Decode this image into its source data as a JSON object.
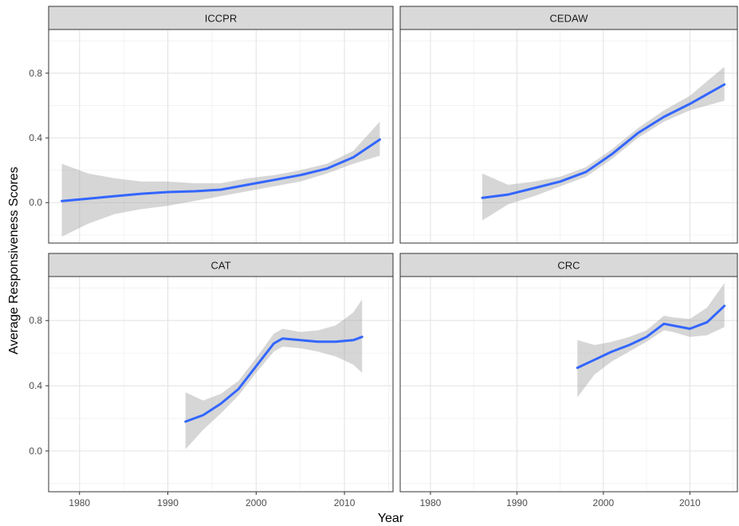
{
  "chart_data": {
    "type": "line",
    "xlabel": "Year",
    "ylabel": "Average Responsiveness Scores",
    "xlim": [
      1976.5,
      2015.5
    ],
    "ylim": [
      -0.25,
      1.07
    ],
    "x_ticks": [
      1980,
      1990,
      2000,
      2010
    ],
    "y_ticks": [
      0.0,
      0.4,
      0.8
    ],
    "grid": true,
    "colors": {
      "line": "#3366FF",
      "ribbon": "#999999",
      "strip": "#D9D9D9",
      "border": "#333333"
    },
    "panels": [
      {
        "name": "ICCPR",
        "x": [
          1978,
          1981,
          1984,
          1987,
          1990,
          1993,
          1996,
          1999,
          2002,
          2005,
          2008,
          2011,
          2014
        ],
        "y": [
          0.01,
          0.025,
          0.04,
          0.055,
          0.065,
          0.07,
          0.08,
          0.11,
          0.14,
          0.17,
          0.21,
          0.28,
          0.39
        ],
        "lower": [
          -0.21,
          -0.13,
          -0.07,
          -0.04,
          -0.02,
          0.01,
          0.04,
          0.07,
          0.1,
          0.13,
          0.18,
          0.24,
          0.29
        ],
        "upper": [
          0.24,
          0.18,
          0.15,
          0.13,
          0.13,
          0.12,
          0.12,
          0.15,
          0.17,
          0.2,
          0.24,
          0.32,
          0.5
        ]
      },
      {
        "name": "CEDAW",
        "x": [
          1986,
          1989,
          1992,
          1995,
          1998,
          2001,
          2004,
          2007,
          2010,
          2014
        ],
        "y": [
          0.03,
          0.05,
          0.09,
          0.13,
          0.19,
          0.3,
          0.43,
          0.53,
          0.61,
          0.73
        ],
        "lower": [
          -0.11,
          -0.01,
          0.04,
          0.1,
          0.16,
          0.27,
          0.4,
          0.5,
          0.57,
          0.63
        ],
        "upper": [
          0.18,
          0.11,
          0.13,
          0.16,
          0.22,
          0.33,
          0.46,
          0.57,
          0.66,
          0.84
        ]
      },
      {
        "name": "CAT",
        "x": [
          1992,
          1994,
          1996,
          1998,
          2000,
          2002,
          2003,
          2005,
          2007,
          2009,
          2011,
          2012
        ],
        "y": [
          0.18,
          0.22,
          0.29,
          0.38,
          0.52,
          0.66,
          0.69,
          0.68,
          0.67,
          0.67,
          0.68,
          0.7
        ],
        "lower": [
          0.01,
          0.13,
          0.23,
          0.34,
          0.48,
          0.61,
          0.64,
          0.63,
          0.61,
          0.58,
          0.53,
          0.48
        ],
        "upper": [
          0.36,
          0.31,
          0.35,
          0.43,
          0.57,
          0.72,
          0.75,
          0.73,
          0.74,
          0.77,
          0.85,
          0.93
        ]
      },
      {
        "name": "CRC",
        "x": [
          1997,
          1999,
          2001,
          2003,
          2005,
          2007,
          2008,
          2010,
          2012,
          2014
        ],
        "y": [
          0.51,
          0.56,
          0.61,
          0.65,
          0.7,
          0.78,
          0.77,
          0.75,
          0.79,
          0.89
        ],
        "lower": [
          0.33,
          0.47,
          0.55,
          0.61,
          0.67,
          0.74,
          0.73,
          0.7,
          0.71,
          0.76
        ],
        "upper": [
          0.68,
          0.65,
          0.67,
          0.7,
          0.74,
          0.83,
          0.82,
          0.81,
          0.88,
          1.03
        ]
      }
    ]
  }
}
